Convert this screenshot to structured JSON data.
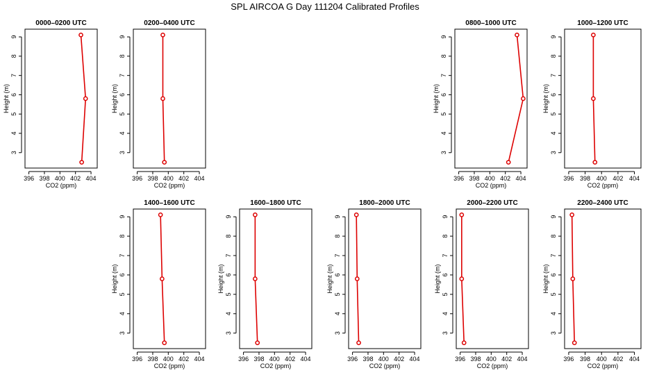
{
  "title": "SPL AIRCOA G  Day 111204  Calibrated Profiles",
  "chart_data": [
    {
      "type": "line",
      "title": "0000–0200 UTC",
      "xlabel": "CO2 (ppm)",
      "ylabel": "Height (m)",
      "xlim": [
        395.5,
        404.8
      ],
      "ylim": [
        2.2,
        9.4
      ],
      "xticks": [
        "396",
        "398",
        "400",
        "402",
        "404"
      ],
      "yticks": [
        "3",
        "4",
        "5",
        "6",
        "7",
        "8",
        "9"
      ],
      "series": [
        {
          "x": [
            402.7,
            403.3,
            402.8
          ],
          "y": [
            9.1,
            5.8,
            2.5
          ]
        }
      ],
      "color": "#dd0000"
    },
    {
      "type": "line",
      "title": "0200–0400 UTC",
      "xlabel": "CO2 (ppm)",
      "ylabel": "Height (m)",
      "xlim": [
        395.5,
        404.8
      ],
      "ylim": [
        2.2,
        9.4
      ],
      "xticks": [
        "396",
        "398",
        "400",
        "402",
        "404"
      ],
      "yticks": [
        "3",
        "4",
        "5",
        "6",
        "7",
        "8",
        "9"
      ],
      "series": [
        {
          "x": [
            399.3,
            399.3,
            399.5
          ],
          "y": [
            9.1,
            5.8,
            2.5
          ]
        }
      ],
      "color": "#dd0000"
    },
    {
      "type": "line",
      "title": "0800–1000 UTC",
      "xlabel": "CO2 (ppm)",
      "ylabel": "Height (m)",
      "xlim": [
        395.5,
        404.8
      ],
      "ylim": [
        2.2,
        9.4
      ],
      "xticks": [
        "396",
        "398",
        "400",
        "402",
        "404"
      ],
      "yticks": [
        "3",
        "4",
        "5",
        "6",
        "7",
        "8",
        "9"
      ],
      "series": [
        {
          "x": [
            403.5,
            404.3,
            402.4
          ],
          "y": [
            9.1,
            5.8,
            2.5
          ]
        }
      ],
      "color": "#dd0000"
    },
    {
      "type": "line",
      "title": "1000–1200 UTC",
      "xlabel": "CO2 (ppm)",
      "ylabel": "Height (m)",
      "xlim": [
        395.5,
        404.8
      ],
      "ylim": [
        2.2,
        9.4
      ],
      "xticks": [
        "396",
        "398",
        "400",
        "402",
        "404"
      ],
      "yticks": [
        "3",
        "4",
        "5",
        "6",
        "7",
        "8",
        "9"
      ],
      "series": [
        {
          "x": [
            399.0,
            399.0,
            399.2
          ],
          "y": [
            9.1,
            5.8,
            2.5
          ]
        }
      ],
      "color": "#dd0000"
    },
    {
      "type": "line",
      "title": "1400–1600 UTC",
      "xlabel": "CO2 (ppm)",
      "ylabel": "Height (m)",
      "xlim": [
        395.5,
        404.8
      ],
      "ylim": [
        2.2,
        9.4
      ],
      "xticks": [
        "396",
        "398",
        "400",
        "402",
        "404"
      ],
      "yticks": [
        "3",
        "4",
        "5",
        "6",
        "7",
        "8",
        "9"
      ],
      "series": [
        {
          "x": [
            399.0,
            399.2,
            399.5
          ],
          "y": [
            9.1,
            5.8,
            2.5
          ]
        }
      ],
      "color": "#dd0000"
    },
    {
      "type": "line",
      "title": "1600–1800 UTC",
      "xlabel": "CO2 (ppm)",
      "ylabel": "Height (m)",
      "xlim": [
        395.5,
        404.8
      ],
      "ylim": [
        2.2,
        9.4
      ],
      "xticks": [
        "396",
        "398",
        "400",
        "402",
        "404"
      ],
      "yticks": [
        "3",
        "4",
        "5",
        "6",
        "7",
        "8",
        "9"
      ],
      "series": [
        {
          "x": [
            397.5,
            397.5,
            397.8
          ],
          "y": [
            9.1,
            5.8,
            2.5
          ]
        }
      ],
      "color": "#dd0000"
    },
    {
      "type": "line",
      "title": "1800–2000 UTC",
      "xlabel": "CO2 (ppm)",
      "ylabel": "Height (m)",
      "xlim": [
        395.5,
        404.8
      ],
      "ylim": [
        2.2,
        9.4
      ],
      "xticks": [
        "396",
        "398",
        "400",
        "402",
        "404"
      ],
      "yticks": [
        "3",
        "4",
        "5",
        "6",
        "7",
        "8",
        "9"
      ],
      "series": [
        {
          "x": [
            396.5,
            396.6,
            396.8
          ],
          "y": [
            9.1,
            5.8,
            2.5
          ]
        }
      ],
      "color": "#dd0000"
    },
    {
      "type": "line",
      "title": "2000–2200 UTC",
      "xlabel": "CO2 (ppm)",
      "ylabel": "Height (m)",
      "xlim": [
        395.5,
        404.8
      ],
      "ylim": [
        2.2,
        9.4
      ],
      "xticks": [
        "396",
        "398",
        "400",
        "402",
        "404"
      ],
      "yticks": [
        "3",
        "4",
        "5",
        "6",
        "7",
        "8",
        "9"
      ],
      "series": [
        {
          "x": [
            396.2,
            396.2,
            396.5
          ],
          "y": [
            9.1,
            5.8,
            2.5
          ]
        }
      ],
      "color": "#dd0000"
    },
    {
      "type": "line",
      "title": "2200–2400 UTC",
      "xlabel": "CO2 (ppm)",
      "ylabel": "Height (m)",
      "xlim": [
        395.5,
        404.8
      ],
      "ylim": [
        2.2,
        9.4
      ],
      "xticks": [
        "396",
        "398",
        "400",
        "402",
        "404"
      ],
      "yticks": [
        "3",
        "4",
        "5",
        "6",
        "7",
        "8",
        "9"
      ],
      "series": [
        {
          "x": [
            396.4,
            396.5,
            396.7
          ],
          "y": [
            9.1,
            5.8,
            2.5
          ]
        }
      ],
      "color": "#dd0000"
    }
  ]
}
